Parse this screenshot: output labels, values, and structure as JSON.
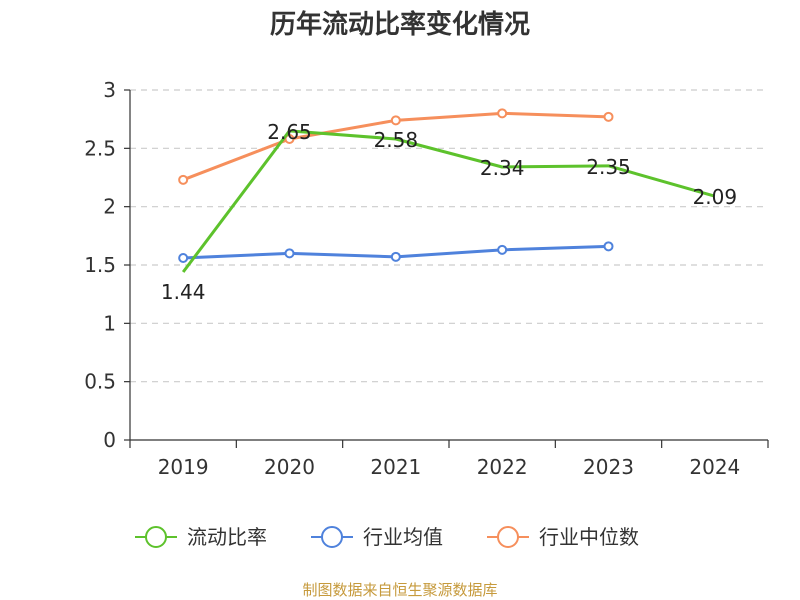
{
  "chart_data": {
    "type": "line",
    "title": "历年流动比率变化情况",
    "categories": [
      "2019",
      "2020",
      "2021",
      "2022",
      "2023",
      "2024"
    ],
    "ylim": [
      0,
      3
    ],
    "yticks": [
      0,
      0.5,
      1,
      1.5,
      2,
      2.5,
      3
    ],
    "grid": true,
    "legend_position": "bottom",
    "series": [
      {
        "name": "流动比率",
        "color": "#5dc22c",
        "values": [
          1.44,
          2.65,
          2.58,
          2.34,
          2.35,
          2.09
        ],
        "labels": [
          "1.44",
          "2.65",
          "2.58",
          "2.34",
          "2.35",
          "2.09"
        ],
        "show_labels": true
      },
      {
        "name": "行业均值",
        "color": "#4f82dc",
        "values": [
          1.56,
          1.6,
          1.57,
          1.63,
          1.66,
          null
        ],
        "show_labels": false
      },
      {
        "name": "行业中位数",
        "color": "#f68f5c",
        "values": [
          2.23,
          2.58,
          2.74,
          2.8,
          2.77,
          null
        ],
        "show_labels": false
      }
    ],
    "source": "制图数据来自恒生聚源数据库"
  }
}
